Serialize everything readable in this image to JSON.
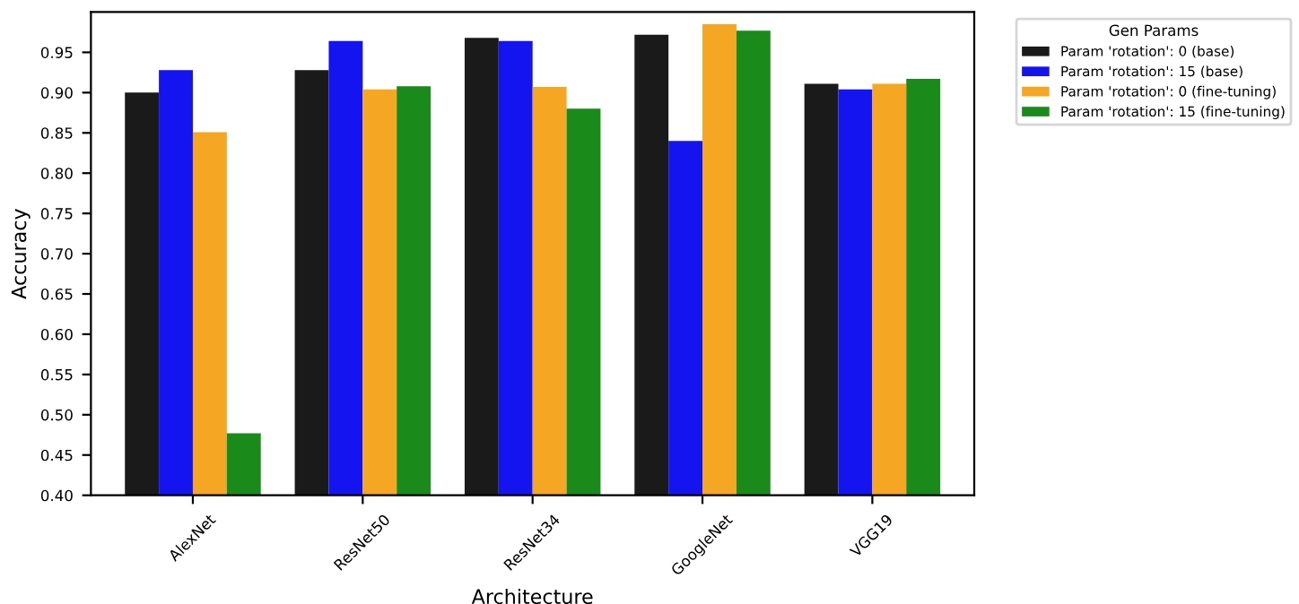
{
  "chart_data": {
    "type": "bar",
    "xlabel": "Architecture",
    "ylabel": "Accuracy",
    "legend_title": "Gen Params",
    "legend": "top right",
    "grid": false,
    "categories": [
      "AlexNet",
      "ResNet50",
      "ResNet34",
      "GoogleNet",
      "VGG19"
    ],
    "ylim": [
      0.4,
      1.0
    ],
    "yticks": [
      {
        "value": 0.4,
        "label": "0.40"
      },
      0.45,
      {
        "value": 0.5,
        "label": "0.50"
      },
      0.55,
      {
        "value": 0.6,
        "label": "0.60"
      },
      0.65,
      {
        "value": 0.7,
        "label": "0.70"
      },
      0.75,
      {
        "value": 0.8,
        "label": "0.80"
      },
      0.85,
      {
        "value": 0.9,
        "label": "0.90"
      },
      0.95
    ],
    "series": [
      {
        "name": "Param 'rotation': 0 (base)",
        "color": "#1a1a1a",
        "values": [
          0.9,
          0.928,
          0.968,
          0.972,
          0.911
        ]
      },
      {
        "name": "Param 'rotation': 15 (base)",
        "color": "#1414f0",
        "values": [
          0.928,
          0.964,
          0.964,
          0.84,
          0.904
        ]
      },
      {
        "name": "Param 'rotation': 0 (fine-tuning)",
        "color": "#f5a623",
        "values": [
          0.851,
          0.904,
          0.907,
          0.985,
          0.911
        ]
      },
      {
        "name": "Param 'rotation': 15 (fine-tuning)",
        "color": "#1a8a1a",
        "values": [
          0.477,
          0.908,
          0.88,
          0.977,
          0.917
        ]
      }
    ]
  }
}
